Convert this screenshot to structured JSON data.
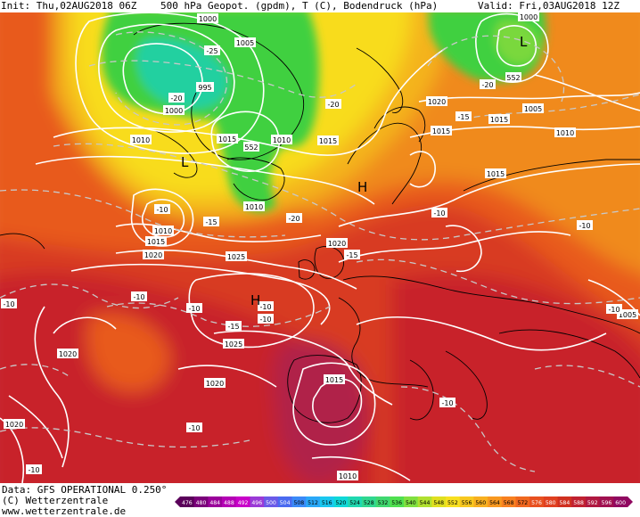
{
  "header": {
    "init": "Init: Thu,02AUG2018 06Z",
    "fields": "500 hPa Geopot. (gpdm), T (C), Bodendruck (hPa)",
    "valid": "Valid: Fri,03AUG2018 12Z"
  },
  "footer": {
    "data_source": "Data: GFS OPERATIONAL 0.250°",
    "copyright": "(C) Wetterzentrale",
    "website": "www.wetterzentrale.de"
  },
  "legend": {
    "values": [
      "476",
      "480",
      "484",
      "488",
      "492",
      "496",
      "500",
      "504",
      "508",
      "512",
      "516",
      "520",
      "524",
      "528",
      "532",
      "536",
      "540",
      "544",
      "548",
      "552",
      "556",
      "560",
      "564",
      "568",
      "572",
      "576",
      "580",
      "584",
      "588",
      "592",
      "596",
      "600"
    ],
    "colors": [
      "#5a005a",
      "#7a007a",
      "#9a009a",
      "#b400b4",
      "#c800c8",
      "#9a3ad6",
      "#6a5ae8",
      "#4a6af0",
      "#3a8af8",
      "#2aa8f8",
      "#1ac8f0",
      "#10d8d8",
      "#20d8b0",
      "#30d890",
      "#40d870",
      "#50e050",
      "#80e040",
      "#b0e030",
      "#e0e020",
      "#f8e020",
      "#f8c820",
      "#f8b020",
      "#f89820",
      "#f88020",
      "#f06820",
      "#e85020",
      "#e04020",
      "#d03020",
      "#c02030",
      "#b01840",
      "#a01050",
      "#900860"
    ]
  },
  "map": {
    "colors": {
      "deep_red": "#c8202a",
      "red": "#d83a24",
      "orange_red": "#e85a1e",
      "orange": "#f08a1e",
      "yellow_orange": "#f4b41c",
      "yellow": "#f8dc1c",
      "green": "#40d040",
      "green_light": "#7ad83c",
      "teal": "#20d0a0",
      "magenta": "#b0204a",
      "isobar": "#ffffff",
      "coast": "#000000"
    },
    "pressure_labels": [
      {
        "id": "p1000a",
        "text": "1000"
      },
      {
        "id": "p1005a",
        "text": "1005"
      },
      {
        "id": "p995",
        "text": "995"
      },
      {
        "id": "p1000b",
        "text": "1000"
      },
      {
        "id": "p1010a",
        "text": "1010"
      },
      {
        "id": "p1015a",
        "text": "1015"
      },
      {
        "id": "p1010b",
        "text": "1010"
      },
      {
        "id": "p1015b",
        "text": "1015"
      },
      {
        "id": "p1010c",
        "text": "1010"
      },
      {
        "id": "p1010d",
        "text": "1010"
      },
      {
        "id": "p1015c",
        "text": "1015"
      },
      {
        "id": "p1020a",
        "text": "1020"
      },
      {
        "id": "p1025a",
        "text": "1025"
      },
      {
        "id": "p1020b",
        "text": "1020"
      },
      {
        "id": "p1015d",
        "text": "1015"
      },
      {
        "id": "p1020c",
        "text": "1020"
      },
      {
        "id": "p1000c",
        "text": "1000"
      },
      {
        "id": "p1005b",
        "text": "1005"
      },
      {
        "id": "p1010e",
        "text": "1010"
      },
      {
        "id": "p1015e",
        "text": "1015"
      },
      {
        "id": "p1025b",
        "text": "1025"
      },
      {
        "id": "p1020d",
        "text": "1020"
      },
      {
        "id": "p1020e",
        "text": "1020"
      },
      {
        "id": "p1015f",
        "text": "1015"
      },
      {
        "id": "p1010f",
        "text": "1010"
      },
      {
        "id": "p1005c",
        "text": "1005"
      },
      {
        "id": "p1015g",
        "text": "1015"
      },
      {
        "id": "p1020f",
        "text": "1020"
      }
    ],
    "temp_labels": [
      {
        "id": "t1",
        "text": "-25"
      },
      {
        "id": "t2",
        "text": "-20"
      },
      {
        "id": "t3",
        "text": "-20"
      },
      {
        "id": "t4",
        "text": "-20"
      },
      {
        "id": "t5",
        "text": "-15"
      },
      {
        "id": "t6",
        "text": "-10"
      },
      {
        "id": "t7",
        "text": "-15"
      },
      {
        "id": "t8",
        "text": "-20"
      },
      {
        "id": "t9",
        "text": "-10"
      },
      {
        "id": "t10",
        "text": "-15"
      },
      {
        "id": "t11",
        "text": "-10"
      },
      {
        "id": "t12",
        "text": "-10"
      },
      {
        "id": "t13",
        "text": "-10"
      },
      {
        "id": "t14",
        "text": "-10"
      },
      {
        "id": "t15",
        "text": "-10"
      },
      {
        "id": "t16",
        "text": "-10"
      },
      {
        "id": "t17",
        "text": "-10"
      },
      {
        "id": "t18",
        "text": "-10"
      },
      {
        "id": "t19",
        "text": "-15"
      },
      {
        "id": "t20",
        "text": "-10"
      },
      {
        "id": "t21",
        "text": "-10"
      }
    ],
    "geopot_labels": [
      {
        "id": "g1",
        "text": "552"
      },
      {
        "id": "g2",
        "text": "552"
      }
    ],
    "centers": [
      {
        "id": "c1",
        "text": "L"
      },
      {
        "id": "c2",
        "text": "L"
      },
      {
        "id": "c3",
        "text": "H"
      },
      {
        "id": "c4",
        "text": "H"
      }
    ]
  }
}
